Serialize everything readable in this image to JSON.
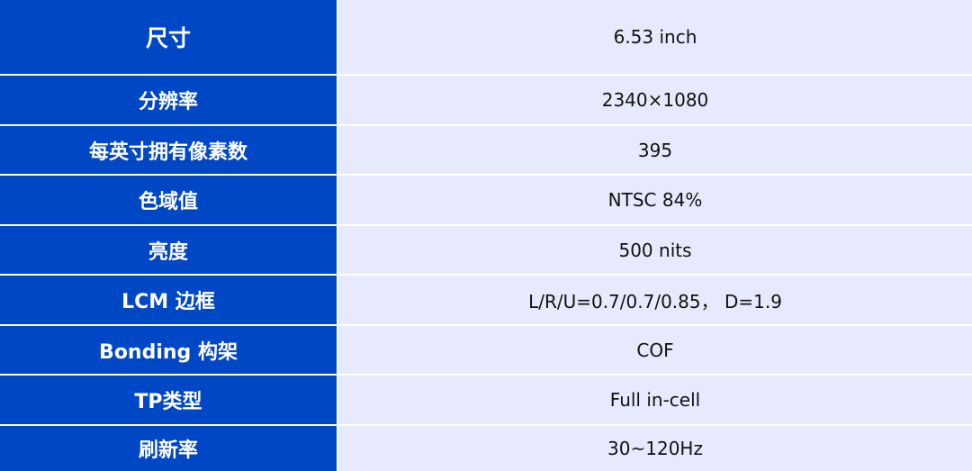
{
  "rows": [
    {
      "label": "尺寸",
      "value": "6.53 inch"
    },
    {
      "label": "分辨率",
      "value": "2340×1080"
    },
    {
      "label": "每英寸拥有像素数",
      "value": "395"
    },
    {
      "label": "色域值",
      "value": "NTSC 84%"
    },
    {
      "label": "亮度",
      "value": "500 nits"
    },
    {
      "label": "LCM 边框",
      "value": "L/R/U=0.7/0.7/0.85， D=1.9"
    },
    {
      "label": "Bonding 构架",
      "value": "COF"
    },
    {
      "label": "TP类型",
      "value": "Full in-cell"
    },
    {
      "label": "刷新率",
      "value": "30~120Hz"
    }
  ],
  "colors": {
    "label_bg": "#0047c6",
    "value_bg": "#e6eafc"
  }
}
